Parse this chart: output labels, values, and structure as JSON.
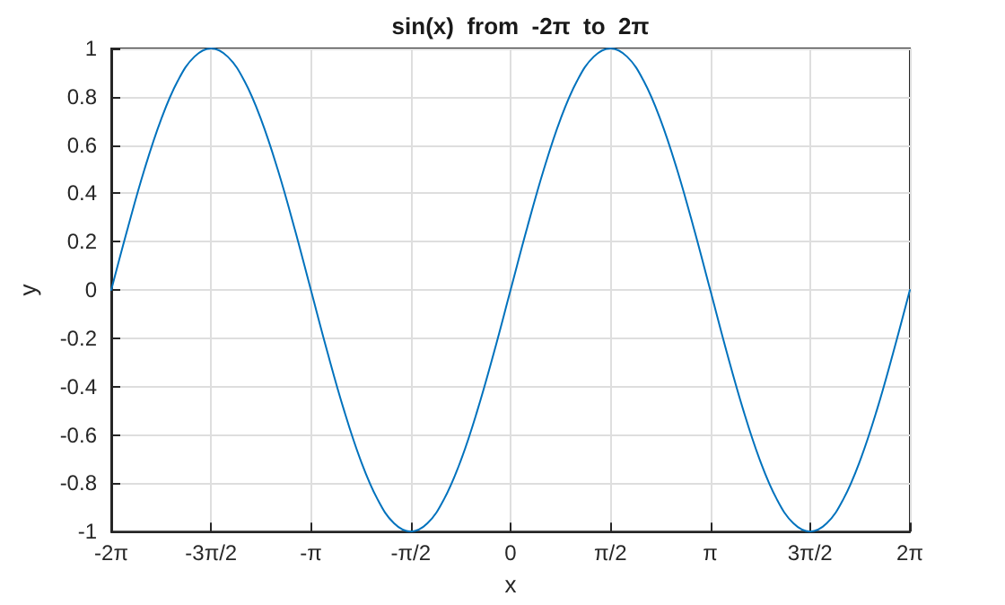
{
  "chart_data": {
    "type": "line",
    "title": "sin(x)  from  -2π  to  2π",
    "xlabel": "x",
    "ylabel": "y",
    "x": [
      -6.283,
      -6.021,
      -5.76,
      -5.498,
      -5.236,
      -4.974,
      -4.712,
      -4.451,
      -4.189,
      -3.927,
      -3.665,
      -3.403,
      -3.142,
      -2.88,
      -2.618,
      -2.356,
      -2.094,
      -1.833,
      -1.571,
      -1.309,
      -1.047,
      -0.785,
      -0.524,
      -0.262,
      0,
      0.262,
      0.524,
      0.785,
      1.047,
      1.309,
      1.571,
      1.833,
      2.094,
      2.356,
      2.618,
      2.88,
      3.142,
      3.403,
      3.665,
      3.927,
      4.189,
      4.451,
      4.712,
      4.974,
      5.236,
      5.498,
      5.76,
      6.021,
      6.283
    ],
    "series": [
      {
        "color": "#0072bd",
        "values": [
          0,
          0.259,
          0.5,
          0.707,
          0.866,
          0.966,
          1,
          0.966,
          0.866,
          0.707,
          0.5,
          0.259,
          0,
          -0.259,
          -0.5,
          -0.707,
          -0.866,
          -0.966,
          -1,
          -0.966,
          -0.866,
          -0.707,
          -0.5,
          -0.259,
          0,
          0.259,
          0.5,
          0.707,
          0.866,
          0.966,
          1,
          0.966,
          0.866,
          0.707,
          0.5,
          0.259,
          0,
          -0.259,
          -0.5,
          -0.707,
          -0.866,
          -0.966,
          -1,
          -0.966,
          -0.866,
          -0.707,
          -0.5,
          -0.259,
          0
        ]
      }
    ],
    "xlim": [
      -6.283,
      6.283
    ],
    "xticks": [
      {
        "value": -6.283,
        "label": "-2π"
      },
      {
        "value": -4.712,
        "label": "-3π/2"
      },
      {
        "value": -3.142,
        "label": "-π"
      },
      {
        "value": -1.571,
        "label": "-π/2"
      },
      {
        "value": 0,
        "label": "0"
      },
      {
        "value": 1.571,
        "label": "π/2"
      },
      {
        "value": 3.142,
        "label": "π"
      },
      {
        "value": 4.712,
        "label": "3π/2"
      },
      {
        "value": 6.283,
        "label": "2π"
      }
    ],
    "ylim": [
      -1,
      1
    ],
    "yticks": [
      -1,
      -0.8,
      -0.6,
      -0.4,
      -0.2,
      0,
      0.2,
      0.4,
      0.6,
      0.8,
      1
    ],
    "grid": true,
    "marker": "none",
    "line_style": "solid"
  }
}
